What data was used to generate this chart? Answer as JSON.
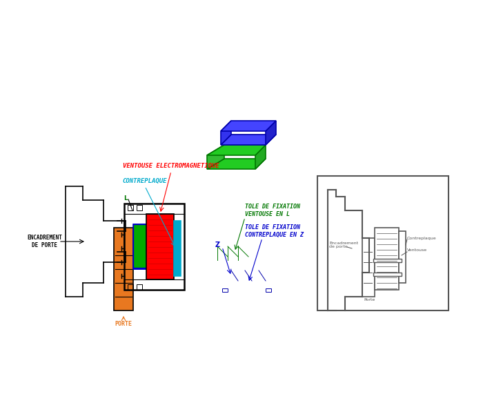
{
  "bg_color": "#ffffff",
  "line_color": "#000000",
  "red": "#ff0000",
  "green": "#00aa00",
  "blue": "#0000cc",
  "orange": "#e87820",
  "cyan": "#00aacc",
  "dark_green": "#007700",
  "gray": "#888888",
  "light_gray": "#aaaaaa",
  "label_ventouse": "VENTOUSE ELECTROMAGNETIQUE",
  "label_contreplaque": "CONTREPLAQUE",
  "label_encadrement": "ENCADREMENT\nDE PORTE",
  "label_porte": "PORTE",
  "label_tole_l": "TOLE DE FIXATION\nVENTOUSE EN L",
  "label_tole_z": "TOLE DE FIXATION\nCONTREPLAQUE EN Z",
  "label_l": "L",
  "label_z": "Z",
  "inset_label_encadrement": "Encadrement\nde porte",
  "inset_label_porte": "Porte",
  "inset_label_contreplaque": "Contreplaque",
  "inset_label_ventouse": "Ventouse"
}
